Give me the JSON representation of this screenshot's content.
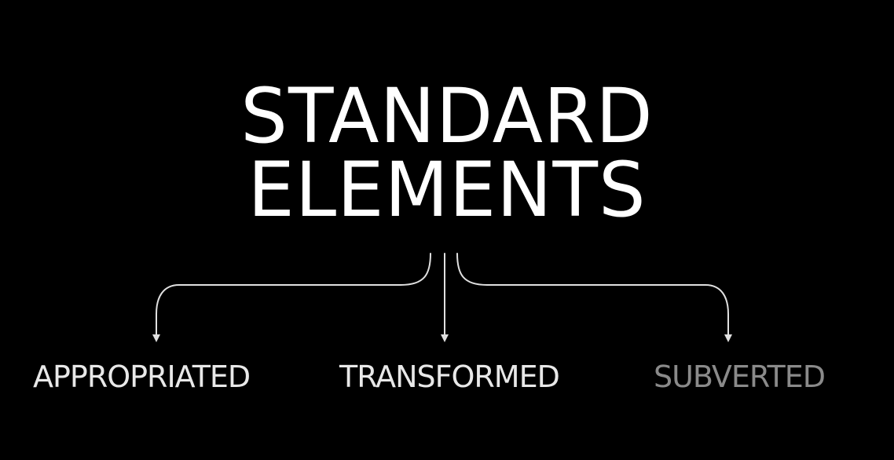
{
  "title": {
    "line1": "STANDARD",
    "line2": "ELEMENTS"
  },
  "branches": [
    {
      "label": "APPROPRIATED",
      "color": "#e8e8e8"
    },
    {
      "label": "TRANSFORMED",
      "color": "#e8e8e8"
    },
    {
      "label": "SUBVERTED",
      "color": "#8a8a8a"
    }
  ],
  "colors": {
    "background": "#000000",
    "title": "#ffffff",
    "arrow": "#e0e0e0"
  }
}
